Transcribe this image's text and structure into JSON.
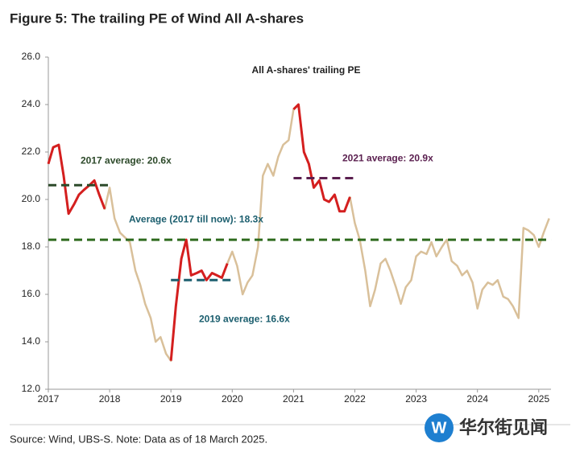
{
  "chart_data": {
    "type": "line",
    "title": "Figure 5: The trailing PE of Wind All A-shares",
    "subtitle": "All A-shares' trailing PE",
    "source": "Source: Wind, UBS-S. Note: Data as of 18 March 2025.",
    "watermark": "华尔街见闻",
    "watermark_logo": "W",
    "x": [
      2017.0,
      2017.08,
      2017.17,
      2017.25,
      2017.33,
      2017.42,
      2017.5,
      2017.58,
      2017.67,
      2017.75,
      2017.83,
      2017.92,
      2018.0,
      2018.08,
      2018.17,
      2018.25,
      2018.33,
      2018.42,
      2018.5,
      2018.58,
      2018.67,
      2018.75,
      2018.83,
      2018.92,
      2019.0,
      2019.08,
      2019.17,
      2019.25,
      2019.33,
      2019.42,
      2019.5,
      2019.58,
      2019.67,
      2019.75,
      2019.83,
      2019.92,
      2020.0,
      2020.08,
      2020.17,
      2020.25,
      2020.33,
      2020.42,
      2020.5,
      2020.58,
      2020.67,
      2020.75,
      2020.83,
      2020.92,
      2021.0,
      2021.08,
      2021.17,
      2021.25,
      2021.33,
      2021.42,
      2021.5,
      2021.58,
      2021.67,
      2021.75,
      2021.83,
      2021.92,
      2022.0,
      2022.08,
      2022.17,
      2022.25,
      2022.33,
      2022.42,
      2022.5,
      2022.58,
      2022.67,
      2022.75,
      2022.83,
      2022.92,
      2023.0,
      2023.08,
      2023.17,
      2023.25,
      2023.33,
      2023.42,
      2023.5,
      2023.58,
      2023.67,
      2023.75,
      2023.83,
      2023.92,
      2024.0,
      2024.08,
      2024.17,
      2024.25,
      2024.33,
      2024.42,
      2024.5,
      2024.58,
      2024.67,
      2024.75,
      2024.83,
      2024.92,
      2025.0,
      2025.08,
      2025.17
    ],
    "series": [
      {
        "color": "#d9c09a",
        "values": [
          21.5,
          22.2,
          22.3,
          21.0,
          19.4,
          19.8,
          20.2,
          20.4,
          20.6,
          20.8,
          20.2,
          19.6,
          20.5,
          19.2,
          18.6,
          18.4,
          18.2,
          17.0,
          16.4,
          15.6,
          15.0,
          14.0,
          14.2,
          13.5,
          13.2,
          15.5,
          17.5,
          18.3,
          16.8,
          16.9,
          17.0,
          16.6,
          16.9,
          16.8,
          16.7,
          17.3,
          17.8,
          17.2,
          16.0,
          16.5,
          16.8,
          18.0,
          21.0,
          21.5,
          21.0,
          21.8,
          22.3,
          22.5,
          23.8,
          24.0,
          22.0,
          21.5,
          20.5,
          20.8,
          20.0,
          19.9,
          20.2,
          19.5,
          19.5,
          20.1,
          19.0,
          18.3,
          17.0,
          15.5,
          16.2,
          17.3,
          17.5,
          17.0,
          16.3,
          15.6,
          16.3,
          16.6,
          17.6,
          17.8,
          17.7,
          18.2,
          17.6,
          18.0,
          18.3,
          17.4,
          17.2,
          16.8,
          17.0,
          16.5,
          15.4,
          16.2,
          16.5,
          16.4,
          16.6,
          15.9,
          15.8,
          15.5,
          15.0,
          18.8,
          18.7,
          18.5,
          18.0,
          18.6,
          19.2
        ]
      },
      {
        "color": "#d41f1f",
        "values": [
          21.5,
          22.2,
          22.3,
          21.0,
          19.4,
          19.8,
          20.2,
          20.4,
          20.6,
          20.8,
          20.2,
          19.6,
          null,
          null,
          null,
          null,
          null,
          null,
          null,
          null,
          null,
          null,
          null,
          null,
          13.2,
          15.5,
          17.5,
          18.3,
          16.8,
          16.9,
          17.0,
          16.6,
          16.9,
          16.8,
          16.7,
          17.3,
          null,
          null,
          null,
          null,
          null,
          null,
          null,
          null,
          null,
          null,
          null,
          null,
          23.8,
          24.0,
          22.0,
          21.5,
          20.5,
          20.8,
          20.0,
          19.9,
          20.2,
          19.5,
          19.5,
          20.1,
          null,
          null,
          null,
          null,
          null,
          null,
          null,
          null,
          null,
          null,
          null,
          null,
          null,
          null,
          null,
          null,
          null,
          null,
          null,
          null,
          null,
          null,
          null,
          null,
          null,
          null,
          null,
          null,
          null,
          null,
          null,
          null,
          null,
          null,
          null,
          null,
          null,
          null,
          null
        ]
      }
    ],
    "reference_lines": [
      {
        "label": "2017 average: 20.6x",
        "value": 20.6,
        "xrange": [
          2017,
          2018
        ],
        "color": "#2d4a2a"
      },
      {
        "label": "Average (2017 till now): 18.3x",
        "value": 18.3,
        "xrange": [
          2017,
          2025.2
        ],
        "color": "#2e6b1e",
        "label_color": "#1b5e6e"
      },
      {
        "label": "2019 average: 16.6x",
        "value": 16.6,
        "xrange": [
          2019,
          2020
        ],
        "color": "#1b5e6e"
      },
      {
        "label": "2021 average: 20.9x",
        "value": 20.9,
        "xrange": [
          2021,
          2022
        ],
        "color": "#5a1f4f"
      }
    ],
    "xlim": [
      2017,
      2025.2
    ],
    "xticks": [
      2017,
      2018,
      2019,
      2020,
      2021,
      2022,
      2023,
      2024,
      2025
    ],
    "ylim": [
      12,
      26
    ],
    "yticks": [
      {
        "value": 12,
        "label": "12.0"
      },
      {
        "value": 14,
        "label": "14.0"
      },
      {
        "value": 16,
        "label": "16.0"
      },
      {
        "value": 18,
        "label": "18.0"
      },
      {
        "value": 20,
        "label": "20.0"
      },
      {
        "value": 22,
        "label": "22.0"
      },
      {
        "value": 24,
        "label": "24.0"
      },
      {
        "value": 26,
        "label": "26.0"
      }
    ]
  }
}
